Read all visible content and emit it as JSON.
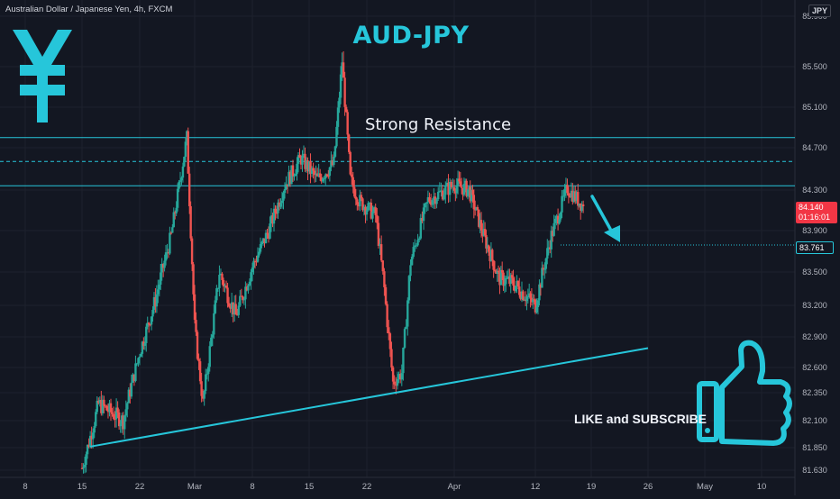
{
  "header": {
    "symbol_line": "Australian Dollar / Japanese Yen, 4h, FXCM",
    "currency_badge": "JPY"
  },
  "annotations": {
    "title": "AUD-JPY",
    "resistance_label": "Strong Resistance",
    "cta": "LIKE and SUBSCRIBE",
    "yen_icon": "yen-sign-icon",
    "thumbs_icon": "thumbs-up-icon",
    "arrow_icon": "down-right-arrow-icon"
  },
  "price_tags": {
    "current_price": "84.140",
    "countdown": "01:16:01",
    "level_price": "83.761"
  },
  "colors": {
    "background": "#131722",
    "bull": "#26a69a",
    "bear": "#ef5350",
    "annotation": "#26c6da",
    "text": "#d1d4dc"
  },
  "chart_data": {
    "type": "candlestick",
    "title": "AUD-JPY",
    "xlabel": "",
    "ylabel": "",
    "y_ticks": [
      "85.900",
      "85.500",
      "85.100",
      "84.700",
      "84.300",
      "83.900",
      "83.500",
      "83.200",
      "82.900",
      "82.600",
      "82.350",
      "82.100",
      "81.850",
      "81.630"
    ],
    "x_ticks": [
      "8",
      "15",
      "22",
      "Mar",
      "8",
      "15",
      "22",
      "Apr",
      "12",
      "19",
      "26",
      "May",
      "10"
    ],
    "ylim": [
      81.6,
      86.0
    ],
    "grid": true,
    "horizontal_levels": [
      {
        "price": 84.8,
        "style": "solid"
      },
      {
        "price": 84.57,
        "style": "dashed"
      },
      {
        "price": 84.34,
        "style": "solid"
      },
      {
        "price": 83.761,
        "style": "dotted"
      }
    ],
    "trendline": {
      "start": [
        "Feb 16",
        81.86
      ],
      "end": [
        "Apr 26",
        82.79
      ]
    },
    "current_price": 84.14,
    "close_anchors": [
      [
        "Feb 15",
        81.65
      ],
      [
        "Feb 17",
        82.25
      ],
      [
        "Feb 20",
        82.1
      ],
      [
        "Feb 22",
        82.75
      ],
      [
        "Feb 24",
        83.25
      ],
      [
        "Feb 26",
        83.85
      ],
      [
        "Feb 28",
        84.8
      ],
      [
        "Mar 1",
        83.0
      ],
      [
        "Mar 2",
        82.25
      ],
      [
        "Mar 4",
        83.5
      ],
      [
        "Mar 6",
        83.1
      ],
      [
        "Mar 8",
        83.55
      ],
      [
        "Mar 10",
        83.9
      ],
      [
        "Mar 12",
        84.35
      ],
      [
        "Mar 14",
        84.6
      ],
      [
        "Mar 16",
        84.4
      ],
      [
        "Mar 18",
        84.55
      ],
      [
        "Mar 19",
        85.55
      ],
      [
        "Mar 20",
        84.4
      ],
      [
        "Mar 21",
        84.2
      ],
      [
        "Mar 23",
        84.05
      ],
      [
        "Mar 24",
        83.35
      ],
      [
        "Mar 25",
        82.45
      ],
      [
        "Mar 26",
        82.55
      ],
      [
        "Mar 27",
        83.6
      ],
      [
        "Mar 29",
        84.2
      ],
      [
        "Apr 1",
        84.35
      ],
      [
        "Apr 3",
        84.3
      ],
      [
        "Apr 5",
        83.85
      ],
      [
        "Apr 7",
        83.45
      ],
      [
        "Apr 9",
        83.4
      ],
      [
        "Apr 12",
        83.2
      ],
      [
        "Apr 14",
        83.85
      ],
      [
        "Apr 16",
        84.32
      ],
      [
        "Apr 18",
        84.14
      ]
    ]
  }
}
